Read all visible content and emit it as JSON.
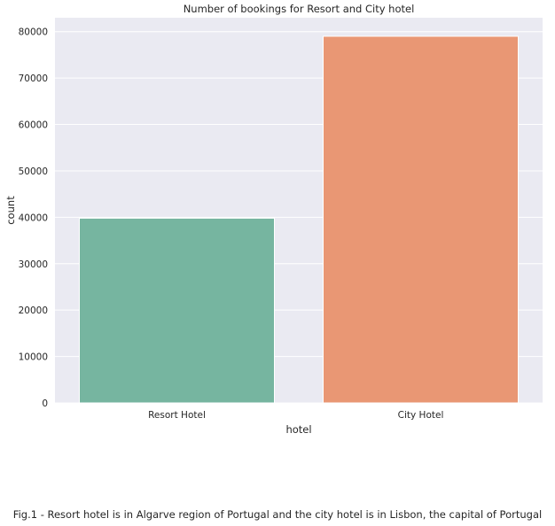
{
  "chart_data": {
    "type": "bar",
    "title": "Number of bookings for Resort and City hotel",
    "xlabel": "hotel",
    "ylabel": "count",
    "categories": [
      "Resort Hotel",
      "City Hotel"
    ],
    "values": [
      39800,
      79000
    ],
    "colors": [
      "#76b5a0",
      "#e99774"
    ],
    "ylim": [
      0,
      83000
    ],
    "yticks": [
      0,
      10000,
      20000,
      30000,
      40000,
      50000,
      60000,
      70000,
      80000
    ],
    "grid": true,
    "background": "#eaeaf2"
  },
  "caption": "Fig.1 - Resort hotel is in Algarve region of Portugal and the city hotel is in Lisbon, the capital of Portugal"
}
